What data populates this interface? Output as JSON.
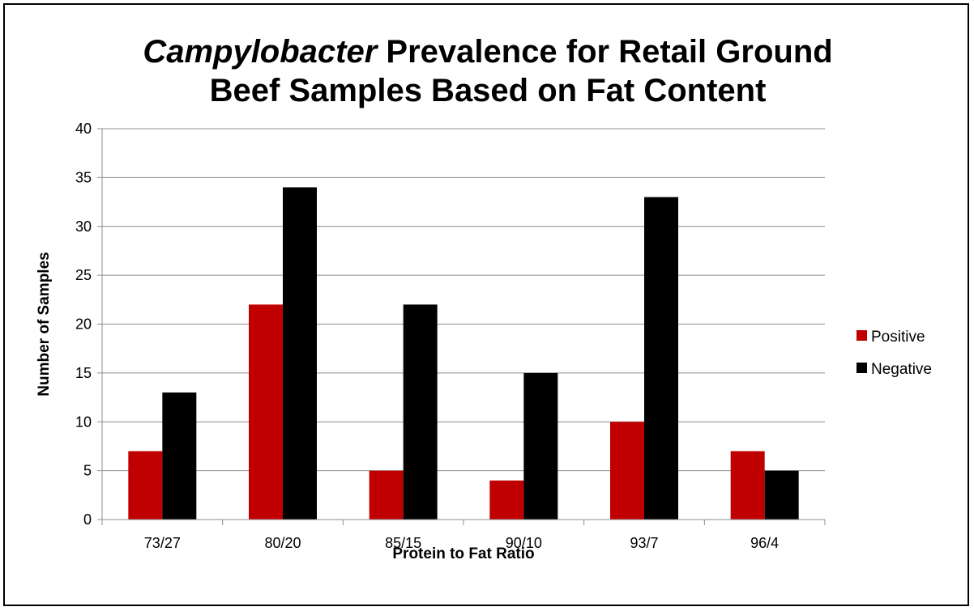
{
  "chart_data": {
    "type": "bar",
    "title_italic": "Campylobacter",
    "title_rest_line1": " Prevalence for Retail Ground",
    "title_line2": "Beef Samples Based on Fat Content",
    "xlabel": "Protein to Fat Ratio",
    "ylabel": "Number of Samples",
    "categories": [
      "73/27",
      "80/20",
      "85/15",
      "90/10",
      "93/7",
      "96/4"
    ],
    "series": [
      {
        "name": "Positive",
        "color": "#c00000",
        "values": [
          7,
          22,
          5,
          4,
          10,
          7
        ]
      },
      {
        "name": "Negative",
        "color": "#000000",
        "values": [
          13,
          34,
          22,
          15,
          33,
          5
        ]
      }
    ],
    "ylim": [
      0,
      40
    ],
    "yticks": [
      0,
      5,
      10,
      15,
      20,
      25,
      30,
      35,
      40
    ],
    "grid": true,
    "legend_position": "right"
  }
}
